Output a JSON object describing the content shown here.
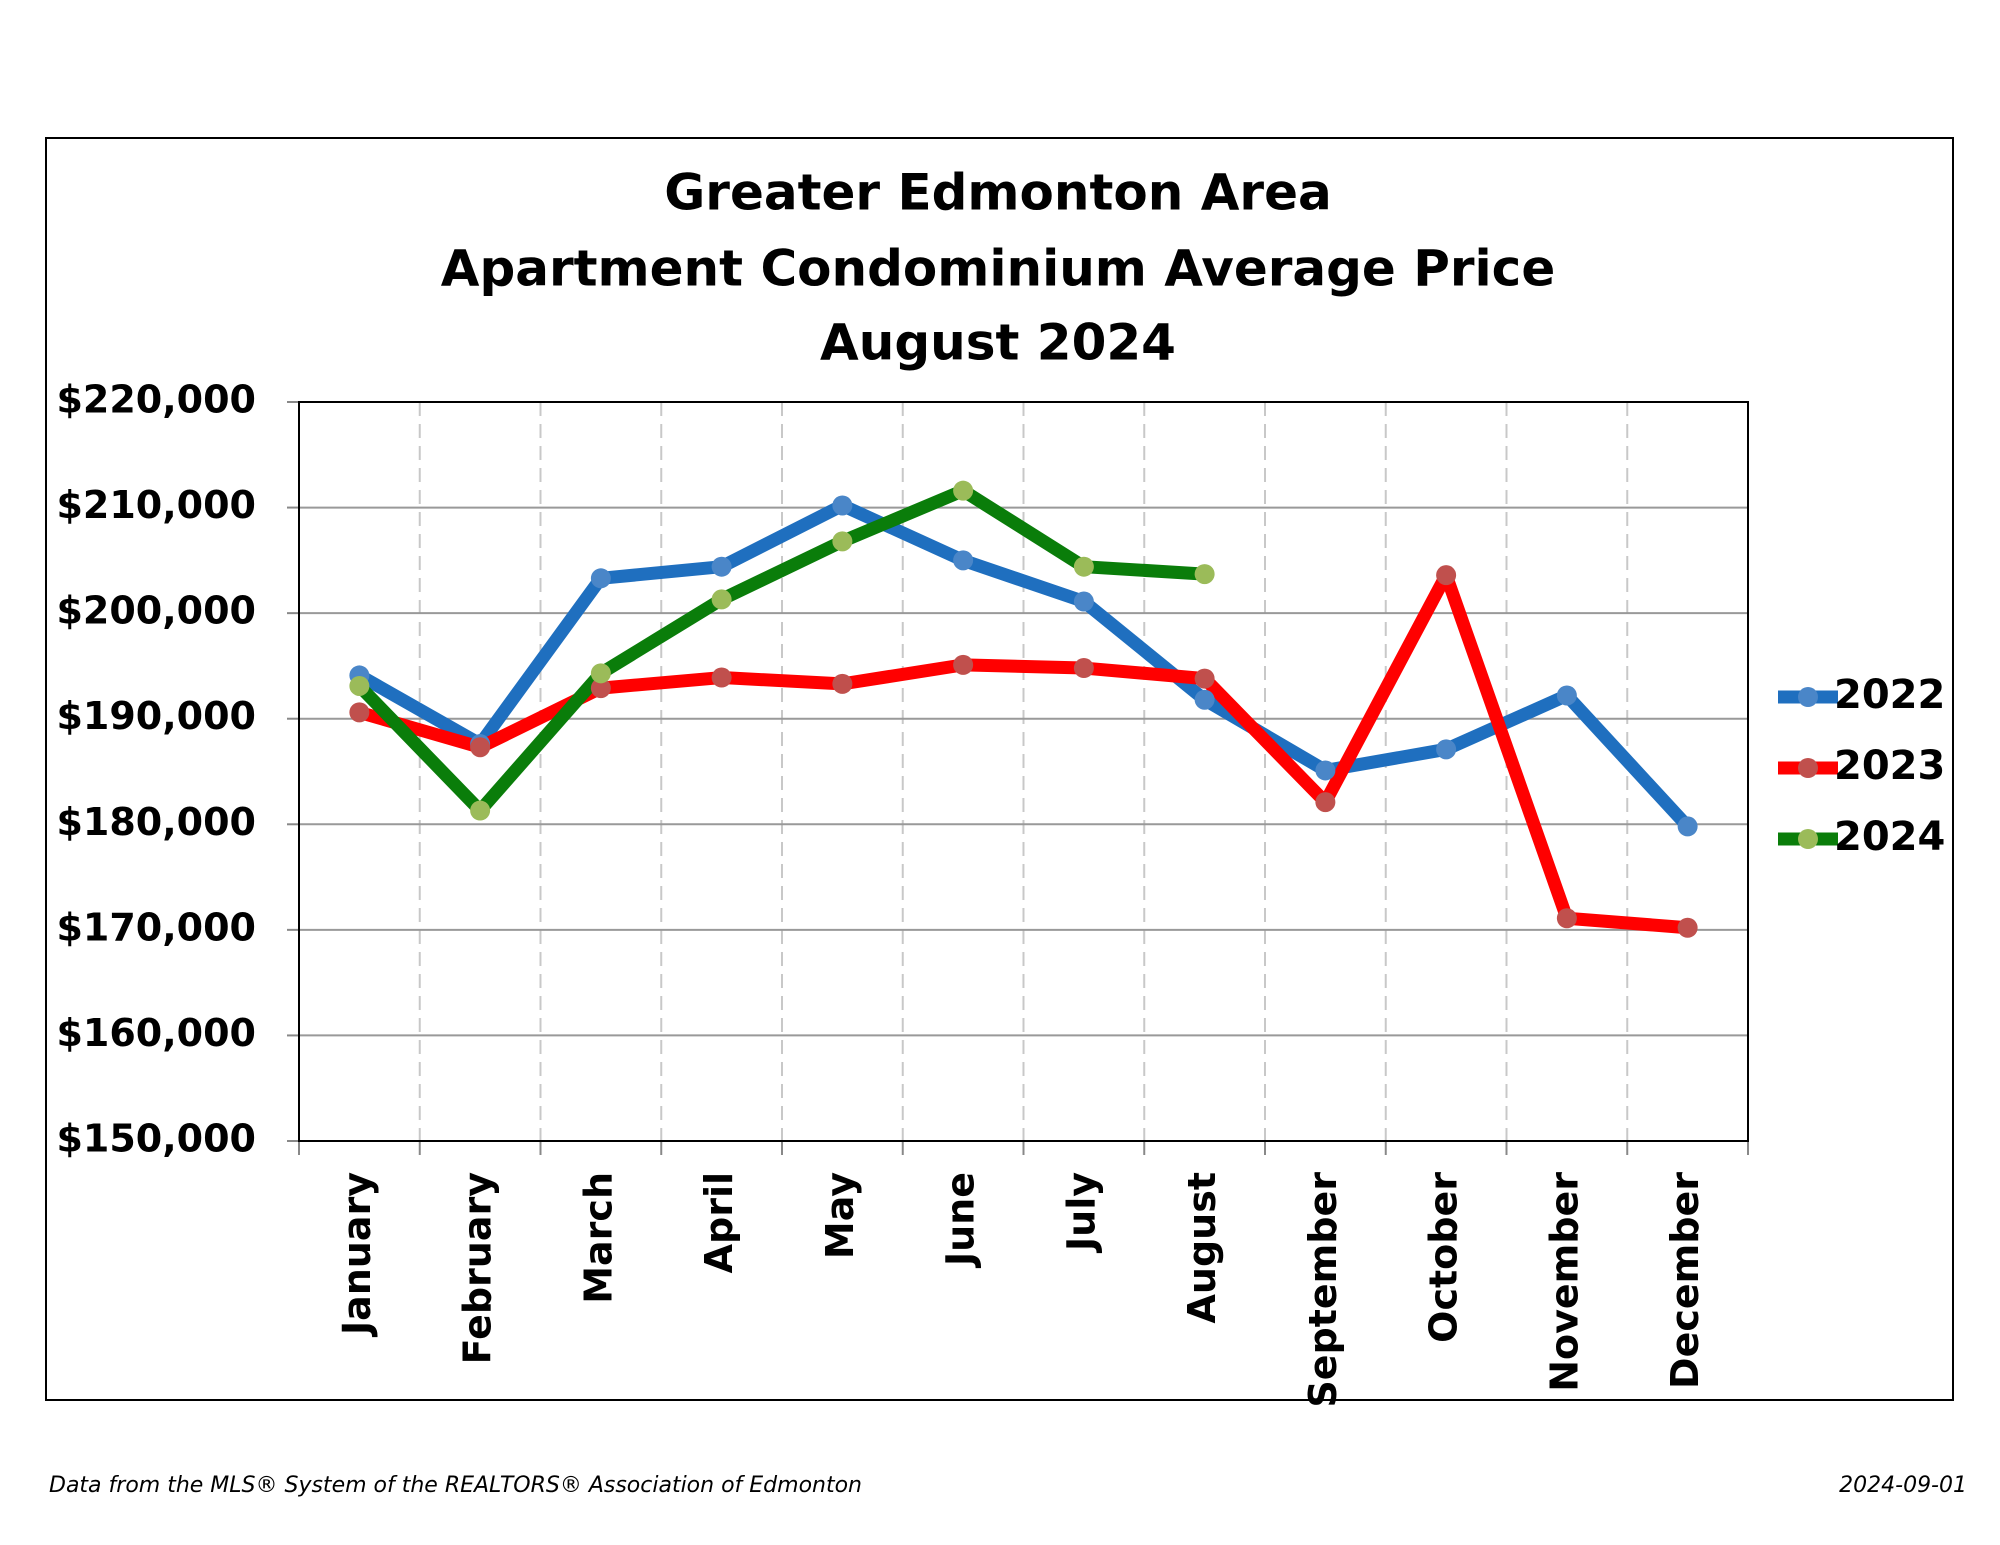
{
  "chart_data": {
    "type": "line",
    "title": [
      "Greater Edmonton Area",
      "Apartment Condominium Average Price",
      "August 2024"
    ],
    "categories": [
      "January",
      "February",
      "March",
      "April",
      "May",
      "June",
      "July",
      "August",
      "September",
      "October",
      "November",
      "December"
    ],
    "series": [
      {
        "name": "2022",
        "color": "#1f6fbf",
        "marker_color": "#4a86c8",
        "values": [
          194100,
          187600,
          203300,
          204400,
          210200,
          205000,
          201100,
          191800,
          185100,
          187100,
          192200,
          179800
        ]
      },
      {
        "name": "2023",
        "color": "#ff0000",
        "marker_color": "#c0504d",
        "values": [
          190600,
          187300,
          192900,
          193900,
          193300,
          195100,
          194800,
          193800,
          182100,
          203600,
          171100,
          170200
        ]
      },
      {
        "name": "2024",
        "color": "#0a7d0a",
        "marker_color": "#9bbb59",
        "values": [
          193100,
          181300,
          194300,
          201300,
          206800,
          211600,
          204400,
          203700,
          null,
          null,
          null,
          null
        ]
      }
    ],
    "ylim": [
      150000,
      220000
    ],
    "yticks": [
      {
        "value": 150000,
        "label": "$150,000"
      },
      {
        "value": 160000,
        "label": "$160,000"
      },
      {
        "value": 170000,
        "label": "$170,000"
      },
      {
        "value": 180000,
        "label": "$180,000"
      },
      {
        "value": 190000,
        "label": "$190,000"
      },
      {
        "value": 200000,
        "label": "$200,000"
      },
      {
        "value": 210000,
        "label": "$210,000"
      },
      {
        "value": 220000,
        "label": "$220,000"
      }
    ],
    "grid": true,
    "legend": "right",
    "footer_left": "Data from the MLS® System of the REALTORS® Association of Edmonton",
    "footer_right": "2024-09-01"
  }
}
